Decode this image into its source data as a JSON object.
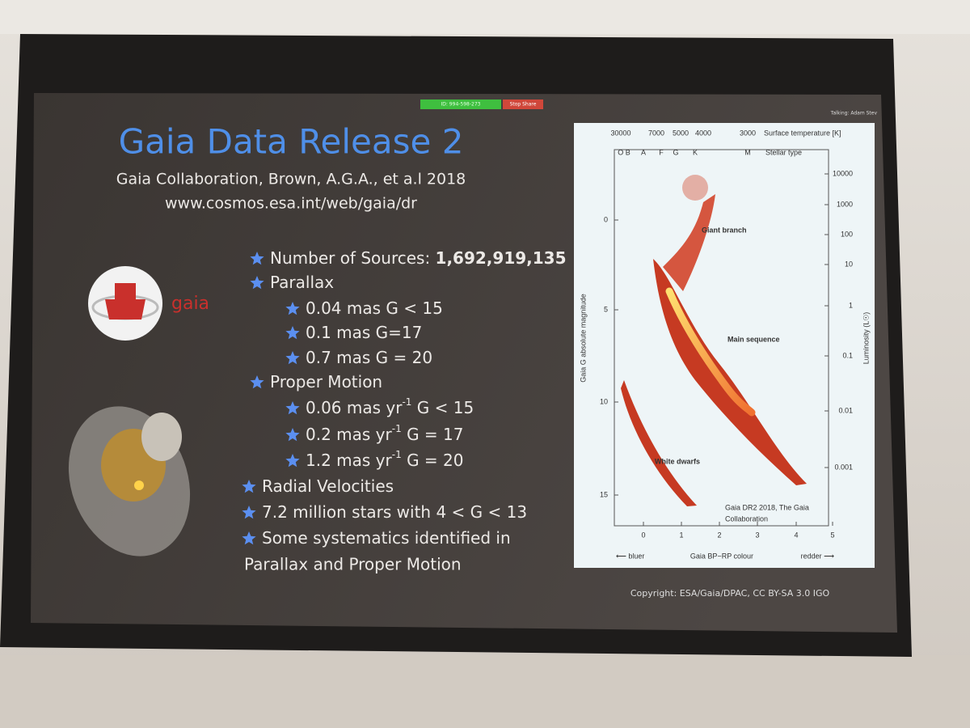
{
  "zoom_bar": {
    "meeting_id": "ID: 994-598-273",
    "stop_share": "Stop Share",
    "talking": "Talking: Adam Stev"
  },
  "slide": {
    "title": "Gaia Data Release 2",
    "citation": "Gaia Collaboration, Brown, A.G.A., et a.l 2018",
    "url": "www.cosmos.esa.int/web/gaia/dr",
    "logo_text": "gaia",
    "bullets": [
      {
        "level": 1,
        "text": "Number of Sources: ",
        "bold": "1,692,919,135"
      },
      {
        "level": 1,
        "text": "Parallax"
      },
      {
        "level": 2,
        "text": "0.04 mas  G < 15"
      },
      {
        "level": 2,
        "text": "0.1 mas  G=17"
      },
      {
        "level": 2,
        "text": "0.7 mas G = 20"
      },
      {
        "level": 1,
        "text": "Proper Motion"
      },
      {
        "level": 2,
        "text": "0.06 mas yr",
        "sup": "-1",
        "tail": "  G < 15"
      },
      {
        "level": 2,
        "text": "0.2 mas yr",
        "sup": "-1",
        "tail": " G = 17"
      },
      {
        "level": 2,
        "text": "1.2 mas yr",
        "sup": "-1",
        "tail": " G = 20"
      },
      {
        "level": 1,
        "text": "Radial Velocities"
      },
      {
        "level": 1,
        "text": "7.2 million stars with 4 < G < 13"
      },
      {
        "level": 1,
        "text": "Some systematics identified in",
        "cont": "Parallax and Proper Motion"
      }
    ],
    "diagram": {
      "top_ticks": [
        "30000",
        "7000",
        "5000",
        "4000",
        "3000"
      ],
      "top_label": "Surface temperature [K]",
      "stellar_types": [
        "O B",
        "A",
        "F",
        "G",
        "K",
        "M"
      ],
      "stellar_label": "Stellar type",
      "left_ticks": [
        "0",
        "5",
        "10",
        "15"
      ],
      "left_label": "Gaia G absolute magnitude",
      "right_ticks": [
        "10000",
        "1000",
        "100",
        "10",
        "1",
        "0.1",
        "0.01",
        "0.001"
      ],
      "right_label": "Luminosity (L☉)",
      "bottom_ticks": [
        "0",
        "1",
        "2",
        "3",
        "4",
        "5"
      ],
      "bottom_label": "Gaia BP−RP colour",
      "bluer": "⟵ bluer",
      "redder": "redder ⟶",
      "giant_branch": "Giant branch",
      "main_sequence": "Main sequence",
      "white_dwarfs": "White dwarfs",
      "credit": [
        "Gaia DR2 2018, The Gaia",
        "Collaboration"
      ]
    },
    "copyright": "Copyright: ESA/Gaia/DPAC, CC BY-SA 3.0 IGO"
  }
}
